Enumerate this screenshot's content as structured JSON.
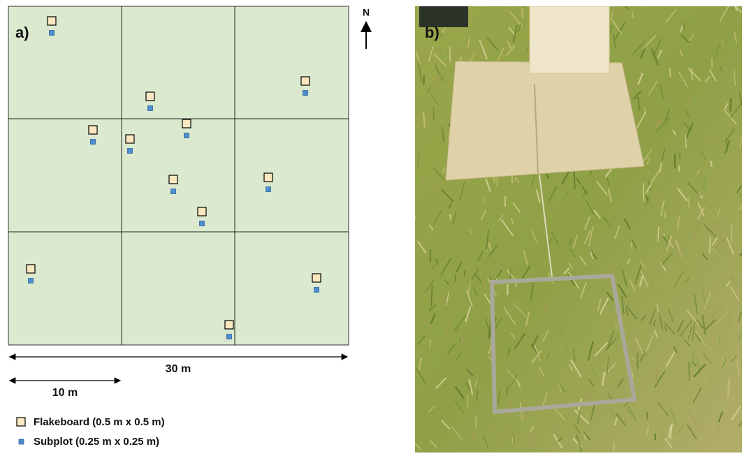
{
  "panel_a": {
    "label": "a)",
    "north": "N",
    "scale_long": "30 m",
    "scale_short": "10 m",
    "legend": [
      "Flakeboard (0.5 m x 0.5 m)",
      "Subplot (0.25 m x 0.25 m)"
    ]
  },
  "panel_b": {
    "label": "b)"
  }
}
